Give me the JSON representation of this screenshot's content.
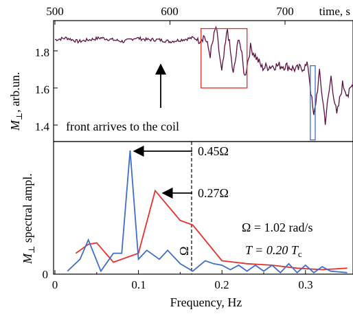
{
  "chart_data": [
    {
      "type": "line",
      "top_axis": {
        "label": "time, s",
        "range": [
          500,
          760
        ],
        "ticks": [
          500,
          600,
          700
        ]
      },
      "ylabel_main": "M",
      "ylabel_sub": "⊥",
      "ylabel_rest": ", arb.un.",
      "yticks": [
        "1.4",
        "1.6",
        "1.8"
      ],
      "ylim": [
        1.29,
        1.98
      ],
      "annotation": "front arrives to the coil",
      "highlight_boxes": [
        {
          "name": "front-window",
          "color": "#e8302a",
          "t_range": [
            627,
            667
          ],
          "y_range": [
            1.6,
            1.92
          ]
        },
        {
          "name": "later-window",
          "color": "#3e6ec8",
          "t_range": [
            722,
            779
          ],
          "y_range": [
            1.32,
            1.72
          ]
        }
      ],
      "series": [
        {
          "color": "#5a1040",
          "x": [
            500,
            510,
            520,
            530,
            540,
            550,
            560,
            570,
            580,
            590,
            600,
            610,
            620,
            625,
            630,
            635,
            640,
            645,
            650,
            655,
            660,
            665,
            670,
            680,
            690,
            700,
            710,
            720,
            725,
            730,
            735,
            740,
            745,
            750,
            755,
            760
          ],
          "values": [
            1.86,
            1.87,
            1.85,
            1.86,
            1.87,
            1.86,
            1.85,
            1.87,
            1.86,
            1.86,
            1.85,
            1.86,
            1.87,
            1.86,
            1.88,
            1.78,
            1.93,
            1.68,
            1.92,
            1.67,
            1.88,
            1.66,
            1.82,
            1.71,
            1.72,
            1.72,
            1.7,
            1.72,
            1.44,
            1.68,
            1.42,
            1.66,
            1.45,
            1.62,
            1.56,
            1.64
          ]
        }
      ]
    },
    {
      "type": "line",
      "xlabel": "Frequency, Hz",
      "ylabel_main": "M",
      "ylabel_sub": "⊥",
      "ylabel_rest": " spectral ampl.",
      "xticks": [
        "0",
        "0.1",
        "0.2",
        "0.3"
      ],
      "yticks": [
        "0"
      ],
      "xlim": [
        0,
        0.35
      ],
      "ylim": [
        0,
        1
      ],
      "omega_line_x": 0.165,
      "omega_label": "Ω",
      "arrow_labels": [
        "0.45Ω",
        "0.27Ω"
      ],
      "param_omega": "Ω = 1.02 rad/s",
      "param_T_main": "T = 0.20 T",
      "param_T_sub": "c",
      "series": [
        {
          "color": "#e8302a",
          "x": [
            0.025,
            0.04,
            0.05,
            0.07,
            0.1,
            0.12,
            0.15,
            0.165,
            0.2,
            0.23,
            0.26,
            0.29,
            0.32,
            0.35
          ],
          "values": [
            0.14,
            0.2,
            0.21,
            0.08,
            0.14,
            0.56,
            0.36,
            0.33,
            0.09,
            0.07,
            0.06,
            0.04,
            0.03,
            0.04
          ]
        },
        {
          "color": "#3e6ec8",
          "x": [
            0.015,
            0.03,
            0.04,
            0.055,
            0.07,
            0.08,
            0.09,
            0.1,
            0.11,
            0.125,
            0.135,
            0.15,
            0.165,
            0.18,
            0.19,
            0.2,
            0.21,
            0.22,
            0.23,
            0.24,
            0.25,
            0.26,
            0.27,
            0.28,
            0.29,
            0.3,
            0.31,
            0.32,
            0.33,
            0.35
          ],
          "values": [
            0.02,
            0.1,
            0.23,
            0.02,
            0.14,
            0.14,
            0.83,
            0.1,
            0.16,
            0.1,
            0.16,
            0.07,
            0.02,
            0.09,
            0.07,
            0.06,
            0.03,
            0.06,
            0.02,
            0.06,
            0.02,
            0.06,
            0.01,
            0.07,
            0.01,
            0.06,
            0.01,
            0.05,
            0.02,
            0.01
          ]
        }
      ]
    }
  ]
}
